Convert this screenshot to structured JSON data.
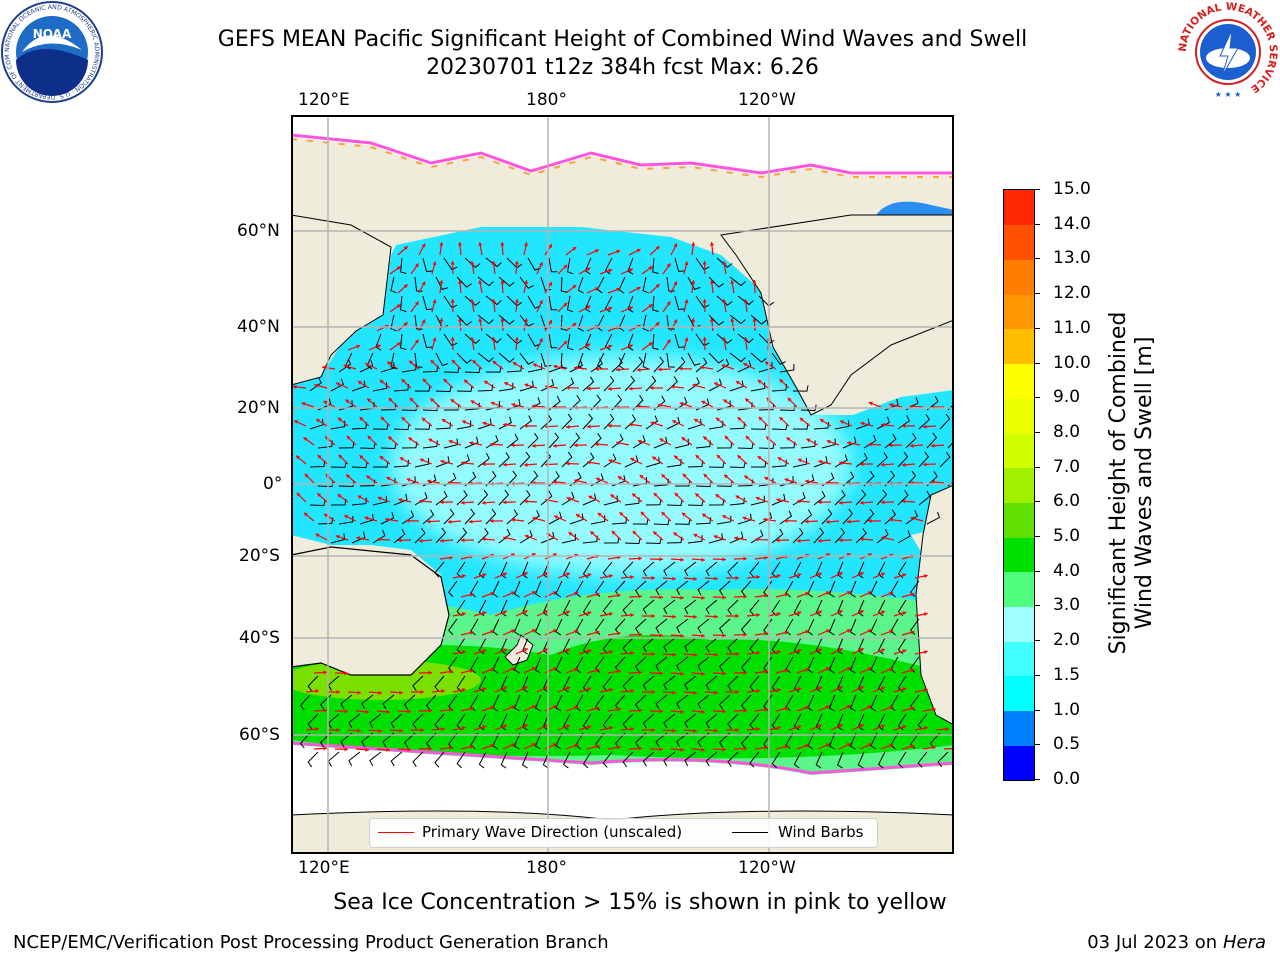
{
  "title": {
    "line1": "GEFS MEAN Pacific Significant Height of Combined Wind Waves and Swell",
    "line2": "20230701 t12z 384h fcst   Max: 6.26"
  },
  "map": {
    "x_ticks": [
      "120°E",
      "180°",
      "120°W"
    ],
    "y_ticks": [
      "60°N",
      "40°N",
      "20°N",
      "0°",
      "20°S",
      "40°S",
      "60°S"
    ],
    "region": "Pacific",
    "gridlines": true
  },
  "legend": {
    "wave_direction": "Primary Wave Direction (unscaled)",
    "wind_barbs": "Wind Barbs",
    "wave_color": "#ff0000",
    "barb_color": "#000000"
  },
  "colorbar": {
    "label": "Significant Height of Combined Wind Waves and Swell [m]",
    "ticks": [
      "15.0",
      "14.0",
      "13.0",
      "12.0",
      "11.0",
      "10.0",
      "9.0",
      "8.0",
      "7.0",
      "6.0",
      "5.0",
      "4.0",
      "3.0",
      "2.0",
      "1.5",
      "1.0",
      "0.5",
      "0.0"
    ],
    "colors_bottom_to_top": [
      "#0000ff",
      "#0080ff",
      "#00ffff",
      "#40ffff",
      "#a0ffff",
      "#50ff80",
      "#00e000",
      "#60e000",
      "#a0f000",
      "#d0ff00",
      "#eaff00",
      "#ffff00",
      "#ffbf00",
      "#ff9800",
      "#ff7d00",
      "#ff5000",
      "#ff2800",
      "#ff0000"
    ]
  },
  "note": "Sea Ice Concentration > 15% is shown in pink to yellow",
  "footer": {
    "left": "NCEP/EMC/Verification Post Processing Product Generation Branch",
    "right_date": "03 Jul 2023 on ",
    "right_host": "Hera"
  },
  "logos": {
    "noaa": "NOAA",
    "noaa_ring": "NATIONAL OCEANIC AND ATMOSPHERIC ADMINISTRATION · U.S. DEPARTMENT OF COMMERCE ·",
    "nws_ring": "NATIONAL WEATHER SERVICE"
  },
  "colors": {
    "land": "#efecdc",
    "sea_ice": "#ffffff",
    "frame": "#000000"
  }
}
